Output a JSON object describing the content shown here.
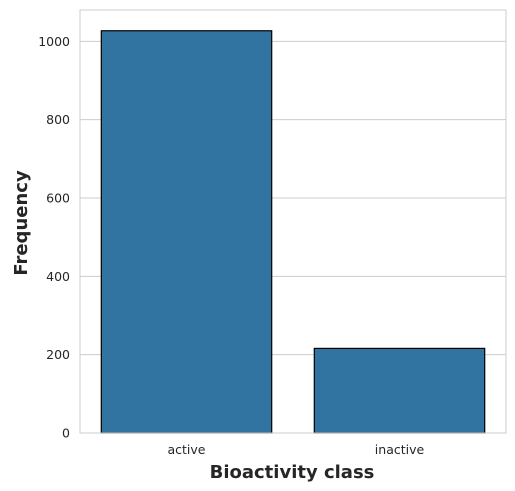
{
  "chart_data": {
    "type": "bar",
    "categories": [
      "active",
      "inactive"
    ],
    "values": [
      1027,
      216
    ],
    "xlabel": "Bioactivity class",
    "ylabel": "Frequency",
    "ylim": [
      0,
      1080
    ],
    "yticks": [
      0,
      200,
      400,
      600,
      800,
      1000
    ],
    "grid": "horizontal",
    "colors": {
      "bar_fill": "#3274a1",
      "bar_edge": "#000000",
      "grid": "#cccccc",
      "spine": "#cccccc",
      "text": "#262626"
    }
  }
}
